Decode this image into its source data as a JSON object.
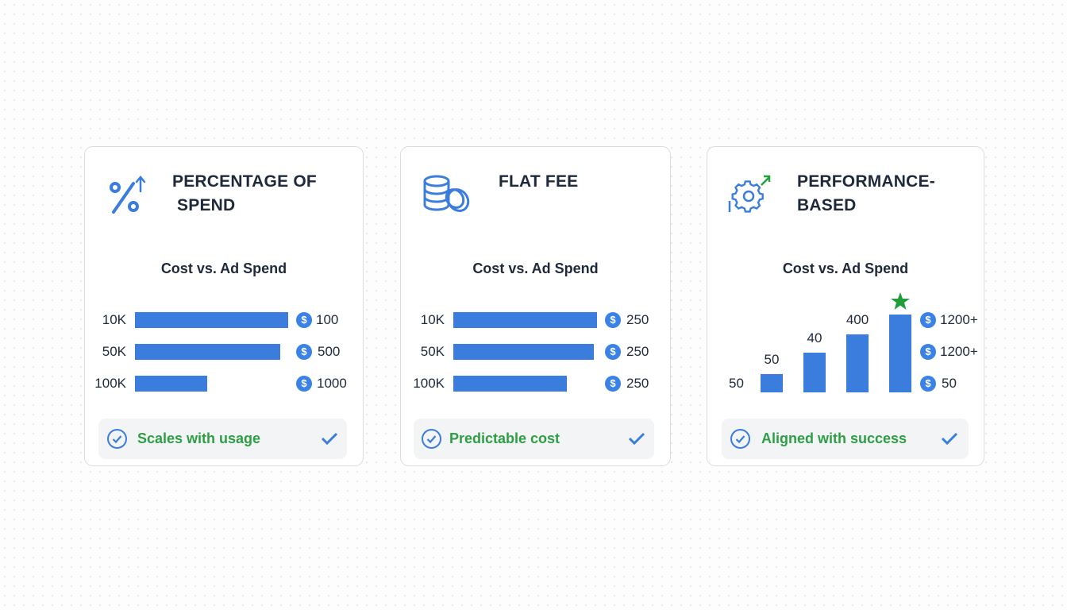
{
  "colors": {
    "accent": "#3b7ddd",
    "success": "#2e9e44",
    "text": "#1e293b"
  },
  "cards": [
    {
      "title": "PERCENTAGE OF\n SPEND",
      "icon": "percent-up-icon",
      "subtitle": "Cost vs. Ad Spend",
      "rows": [
        {
          "label": "10K",
          "bar_fill_pct": 100,
          "value": "100"
        },
        {
          "label": "50K",
          "bar_fill_pct": 95,
          "value": "500"
        },
        {
          "label": "100K",
          "bar_fill_pct": 47,
          "value": "1000"
        }
      ],
      "footer": "Scales with usage"
    },
    {
      "title": "FLAT FEE",
      "icon": "coins-icon",
      "subtitle": "Cost vs. Ad Spend",
      "rows": [
        {
          "label": "10K",
          "bar_fill_pct": 100,
          "value": "250"
        },
        {
          "label": "50K",
          "bar_fill_pct": 98,
          "value": "250"
        },
        {
          "label": "100K",
          "bar_fill_pct": 79,
          "value": "250"
        }
      ],
      "footer": "Predictable cost"
    },
    {
      "title": "PERFORMANCE-\nBASED",
      "icon": "gear-growth-icon",
      "subtitle": "Cost vs. Ad Spend",
      "left_label": "50",
      "bars": [
        {
          "label": "50",
          "height_pct": 23
        },
        {
          "label": "40",
          "height_pct": 50
        },
        {
          "label": "400",
          "height_pct": 73
        },
        {
          "label": "",
          "height_pct": 98,
          "star": true
        }
      ],
      "values": [
        "1200+",
        "1200+",
        "50"
      ],
      "footer": "Aligned with success"
    }
  ],
  "coin_symbol": "$"
}
